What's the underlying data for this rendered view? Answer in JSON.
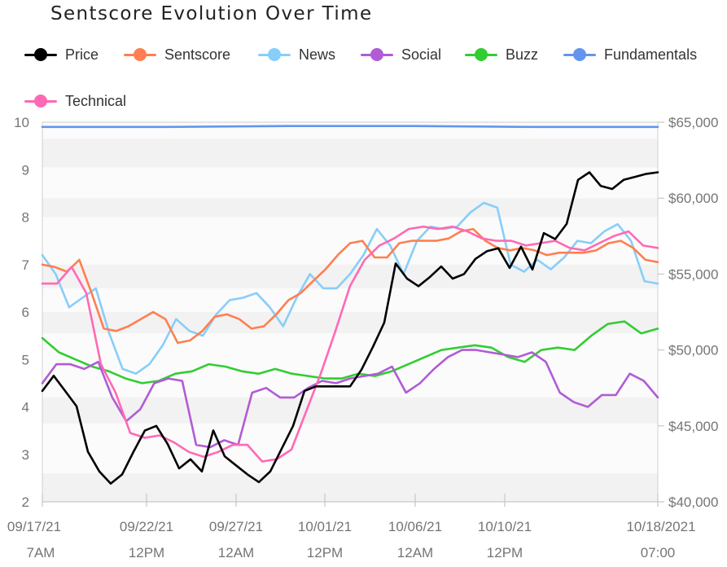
{
  "chart_data": {
    "type": "line",
    "title": "Sentscore Evolution Over Time",
    "xlabel": "",
    "ylabel": "",
    "ylim": [
      2,
      10
    ],
    "ylim_right": [
      40000,
      65000
    ],
    "y_ticks": [
      "2",
      "3",
      "4",
      "5",
      "6",
      "7",
      "8",
      "9",
      "10"
    ],
    "y2_ticks": [
      "$40,000",
      "$45,000",
      "$50,000",
      "$55,000",
      "$60,000",
      "$65,000"
    ],
    "x_ticks": [
      {
        "date": "09/17/21",
        "time": "7AM"
      },
      {
        "date": "09/22/21",
        "time": "12PM"
      },
      {
        "date": "09/27/21",
        "time": "12AM"
      },
      {
        "date": "10/01/21",
        "time": "12PM"
      },
      {
        "date": "10/06/21",
        "time": "12AM"
      },
      {
        "date": "10/10/21",
        "time": "12PM"
      },
      {
        "date": "10/18/2021",
        "time": "07:00"
      }
    ],
    "grid": "horizontal bands",
    "legend_position": "top",
    "series": [
      {
        "name": "Price",
        "axis": "right",
        "color": "#000000",
        "values": [
          [
            0,
            47300
          ],
          [
            1,
            48300
          ],
          [
            2,
            47300
          ],
          [
            3,
            46300
          ],
          [
            4,
            43300
          ],
          [
            5,
            42000
          ],
          [
            6,
            41200
          ],
          [
            7,
            41800
          ],
          [
            8,
            43300
          ],
          [
            9,
            44700
          ],
          [
            10,
            45000
          ],
          [
            11,
            43800
          ],
          [
            12,
            42200
          ],
          [
            13,
            42800
          ],
          [
            14,
            42000
          ],
          [
            15,
            44700
          ],
          [
            16,
            43000
          ],
          [
            17,
            42400
          ],
          [
            18,
            41800
          ],
          [
            19,
            41300
          ],
          [
            20,
            42000
          ],
          [
            21,
            43500
          ],
          [
            22,
            45000
          ],
          [
            23,
            47300
          ],
          [
            24,
            47600
          ],
          [
            25,
            47600
          ],
          [
            26,
            47600
          ],
          [
            27,
            47600
          ],
          [
            28,
            48700
          ],
          [
            29,
            50200
          ],
          [
            30,
            51800
          ],
          [
            31,
            55700
          ],
          [
            32,
            54700
          ],
          [
            33,
            54200
          ],
          [
            34,
            54800
          ],
          [
            35,
            55500
          ],
          [
            36,
            54700
          ],
          [
            37,
            55000
          ],
          [
            38,
            56000
          ],
          [
            39,
            56500
          ],
          [
            40,
            56700
          ],
          [
            41,
            55400
          ],
          [
            42,
            56800
          ],
          [
            43,
            55300
          ],
          [
            44,
            57700
          ],
          [
            45,
            57300
          ],
          [
            46,
            58300
          ],
          [
            47,
            61200
          ],
          [
            48,
            61700
          ],
          [
            49,
            60800
          ],
          [
            50,
            60600
          ],
          [
            51,
            61200
          ],
          [
            52,
            61400
          ],
          [
            53,
            61600
          ],
          [
            54,
            61700
          ]
        ]
      },
      {
        "name": "Sentscore",
        "axis": "left",
        "color": "#ff7f50",
        "values": [
          [
            0,
            7.0
          ],
          [
            1,
            6.95
          ],
          [
            2,
            6.85
          ],
          [
            3,
            7.1
          ],
          [
            4,
            6.4
          ],
          [
            5,
            5.65
          ],
          [
            6,
            5.6
          ],
          [
            7,
            5.7
          ],
          [
            8,
            5.85
          ],
          [
            9,
            6.0
          ],
          [
            10,
            5.85
          ],
          [
            11,
            5.35
          ],
          [
            12,
            5.4
          ],
          [
            13,
            5.6
          ],
          [
            14,
            5.9
          ],
          [
            15,
            5.95
          ],
          [
            16,
            5.85
          ],
          [
            17,
            5.65
          ],
          [
            18,
            5.7
          ],
          [
            19,
            5.95
          ],
          [
            20,
            6.25
          ],
          [
            21,
            6.4
          ],
          [
            22,
            6.65
          ],
          [
            23,
            6.9
          ],
          [
            24,
            7.2
          ],
          [
            25,
            7.45
          ],
          [
            26,
            7.5
          ],
          [
            27,
            7.15
          ],
          [
            28,
            7.15
          ],
          [
            29,
            7.45
          ],
          [
            30,
            7.5
          ],
          [
            31,
            7.5
          ],
          [
            32,
            7.5
          ],
          [
            33,
            7.55
          ],
          [
            34,
            7.7
          ],
          [
            35,
            7.75
          ],
          [
            36,
            7.5
          ],
          [
            37,
            7.35
          ],
          [
            38,
            7.3
          ],
          [
            39,
            7.35
          ],
          [
            40,
            7.3
          ],
          [
            41,
            7.2
          ],
          [
            42,
            7.25
          ],
          [
            43,
            7.25
          ],
          [
            44,
            7.25
          ],
          [
            45,
            7.3
          ],
          [
            46,
            7.45
          ],
          [
            47,
            7.5
          ],
          [
            48,
            7.35
          ],
          [
            49,
            7.1
          ],
          [
            50,
            7.05
          ]
        ]
      },
      {
        "name": "News",
        "axis": "left",
        "color": "#87cefa",
        "values": [
          [
            0,
            7.2
          ],
          [
            1,
            6.8
          ],
          [
            2,
            6.1
          ],
          [
            3,
            6.3
          ],
          [
            4,
            6.5
          ],
          [
            5,
            5.55
          ],
          [
            6,
            4.8
          ],
          [
            7,
            4.7
          ],
          [
            8,
            4.9
          ],
          [
            9,
            5.3
          ],
          [
            10,
            5.85
          ],
          [
            11,
            5.6
          ],
          [
            12,
            5.5
          ],
          [
            13,
            5.95
          ],
          [
            14,
            6.25
          ],
          [
            15,
            6.3
          ],
          [
            16,
            6.4
          ],
          [
            17,
            6.1
          ],
          [
            18,
            5.7
          ],
          [
            19,
            6.3
          ],
          [
            20,
            6.8
          ],
          [
            21,
            6.5
          ],
          [
            22,
            6.5
          ],
          [
            23,
            6.8
          ],
          [
            24,
            7.2
          ],
          [
            25,
            7.75
          ],
          [
            26,
            7.4
          ],
          [
            27,
            6.8
          ],
          [
            28,
            7.5
          ],
          [
            29,
            7.8
          ],
          [
            30,
            7.75
          ],
          [
            31,
            7.8
          ],
          [
            32,
            8.1
          ],
          [
            33,
            8.3
          ],
          [
            34,
            8.2
          ],
          [
            35,
            7.0
          ],
          [
            36,
            6.85
          ],
          [
            37,
            7.1
          ],
          [
            38,
            6.9
          ],
          [
            39,
            7.15
          ],
          [
            40,
            7.5
          ],
          [
            41,
            7.45
          ],
          [
            42,
            7.7
          ],
          [
            43,
            7.85
          ],
          [
            44,
            7.5
          ],
          [
            45,
            6.65
          ],
          [
            46,
            6.6
          ]
        ]
      },
      {
        "name": "Social",
        "axis": "left",
        "color": "#b15bd6",
        "values": [
          [
            0,
            4.5
          ],
          [
            1,
            4.9
          ],
          [
            2,
            4.9
          ],
          [
            3,
            4.8
          ],
          [
            4,
            4.95
          ],
          [
            5,
            4.2
          ],
          [
            6,
            3.7
          ],
          [
            7,
            3.95
          ],
          [
            8,
            4.5
          ],
          [
            9,
            4.6
          ],
          [
            10,
            4.55
          ],
          [
            11,
            3.2
          ],
          [
            12,
            3.15
          ],
          [
            13,
            3.3
          ],
          [
            14,
            3.2
          ],
          [
            15,
            4.3
          ],
          [
            16,
            4.4
          ],
          [
            17,
            4.2
          ],
          [
            18,
            4.2
          ],
          [
            19,
            4.4
          ],
          [
            20,
            4.55
          ],
          [
            21,
            4.5
          ],
          [
            22,
            4.6
          ],
          [
            23,
            4.65
          ],
          [
            24,
            4.7
          ],
          [
            25,
            4.85
          ],
          [
            26,
            4.3
          ],
          [
            27,
            4.5
          ],
          [
            28,
            4.8
          ],
          [
            29,
            5.05
          ],
          [
            30,
            5.2
          ],
          [
            31,
            5.2
          ],
          [
            32,
            5.15
          ],
          [
            33,
            5.1
          ],
          [
            34,
            5.05
          ],
          [
            35,
            5.15
          ],
          [
            36,
            4.95
          ],
          [
            37,
            4.3
          ],
          [
            38,
            4.1
          ],
          [
            39,
            4.0
          ],
          [
            40,
            4.25
          ],
          [
            41,
            4.25
          ],
          [
            42,
            4.7
          ],
          [
            43,
            4.55
          ],
          [
            44,
            4.2
          ]
        ]
      },
      {
        "name": "Buzz",
        "axis": "left",
        "color": "#32cd32",
        "values": [
          [
            0,
            5.45
          ],
          [
            1,
            5.15
          ],
          [
            2,
            5.0
          ],
          [
            3,
            4.85
          ],
          [
            4,
            4.75
          ],
          [
            5,
            4.6
          ],
          [
            6,
            4.5
          ],
          [
            7,
            4.55
          ],
          [
            8,
            4.7
          ],
          [
            9,
            4.75
          ],
          [
            10,
            4.9
          ],
          [
            11,
            4.85
          ],
          [
            12,
            4.75
          ],
          [
            13,
            4.7
          ],
          [
            14,
            4.8
          ],
          [
            15,
            4.7
          ],
          [
            16,
            4.65
          ],
          [
            17,
            4.6
          ],
          [
            18,
            4.6
          ],
          [
            19,
            4.7
          ],
          [
            20,
            4.65
          ],
          [
            21,
            4.75
          ],
          [
            22,
            4.9
          ],
          [
            23,
            5.05
          ],
          [
            24,
            5.2
          ],
          [
            25,
            5.25
          ],
          [
            26,
            5.3
          ],
          [
            27,
            5.25
          ],
          [
            28,
            5.05
          ],
          [
            29,
            4.95
          ],
          [
            30,
            5.2
          ],
          [
            31,
            5.25
          ],
          [
            32,
            5.2
          ],
          [
            33,
            5.5
          ],
          [
            34,
            5.75
          ],
          [
            35,
            5.8
          ],
          [
            36,
            5.55
          ],
          [
            37,
            5.65
          ]
        ]
      },
      {
        "name": "Fundamentals",
        "axis": "left",
        "color": "#6495ed",
        "values": [
          [
            0,
            9.9
          ],
          [
            1,
            9.9
          ],
          [
            2,
            9.92
          ],
          [
            3,
            9.92
          ],
          [
            4,
            9.9
          ],
          [
            5,
            9.9
          ]
        ]
      },
      {
        "name": "Technical",
        "axis": "left",
        "color": "#ff69b4",
        "values": [
          [
            0,
            6.6
          ],
          [
            1,
            6.6
          ],
          [
            2,
            6.95
          ],
          [
            3,
            6.4
          ],
          [
            4,
            4.9
          ],
          [
            5,
            4.3
          ],
          [
            6,
            3.45
          ],
          [
            7,
            3.35
          ],
          [
            8,
            3.4
          ],
          [
            9,
            3.25
          ],
          [
            10,
            3.05
          ],
          [
            11,
            2.95
          ],
          [
            12,
            3.05
          ],
          [
            13,
            3.2
          ],
          [
            14,
            3.2
          ],
          [
            15,
            2.85
          ],
          [
            16,
            2.9
          ],
          [
            17,
            3.1
          ],
          [
            18,
            3.9
          ],
          [
            19,
            4.7
          ],
          [
            20,
            5.6
          ],
          [
            21,
            6.55
          ],
          [
            22,
            7.1
          ],
          [
            23,
            7.4
          ],
          [
            24,
            7.55
          ],
          [
            25,
            7.75
          ],
          [
            26,
            7.8
          ],
          [
            27,
            7.75
          ],
          [
            28,
            7.8
          ],
          [
            29,
            7.7
          ],
          [
            30,
            7.55
          ],
          [
            31,
            7.5
          ],
          [
            32,
            7.5
          ],
          [
            33,
            7.4
          ],
          [
            34,
            7.45
          ],
          [
            35,
            7.5
          ],
          [
            36,
            7.35
          ],
          [
            37,
            7.3
          ],
          [
            38,
            7.45
          ],
          [
            39,
            7.6
          ],
          [
            40,
            7.7
          ],
          [
            41,
            7.4
          ],
          [
            42,
            7.35
          ]
        ]
      }
    ]
  }
}
